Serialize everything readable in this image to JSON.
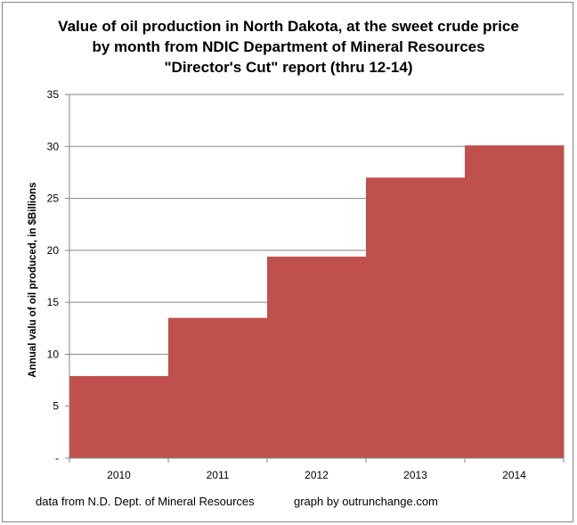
{
  "chart_data": {
    "type": "bar",
    "title_lines": [
      "Value of oil production in North Dakota, at the sweet crude price",
      "by month from NDIC Department of Mineral Resources",
      "\"Director's Cut\" report  (thru 12-14)"
    ],
    "xlabel": "",
    "ylabel": "Annual valu of oil produced, in $Billions",
    "categories": [
      "2010",
      "2011",
      "2012",
      "2013",
      "2014"
    ],
    "values": [
      7.9,
      13.5,
      19.4,
      27.0,
      30.1
    ],
    "ylim": [
      0,
      35
    ],
    "yticks": [
      0,
      5,
      10,
      15,
      20,
      25,
      30,
      35
    ],
    "ytick_labels": [
      "-",
      "5",
      "10",
      "15",
      "20",
      "25",
      "30",
      "35"
    ],
    "grid": true,
    "bar_color": "#C0504D",
    "gap_width": 0,
    "legend": "none",
    "annotations": [
      "data from N.D. Dept. of Mineral Resources",
      "graph by outrunchange.com"
    ]
  }
}
